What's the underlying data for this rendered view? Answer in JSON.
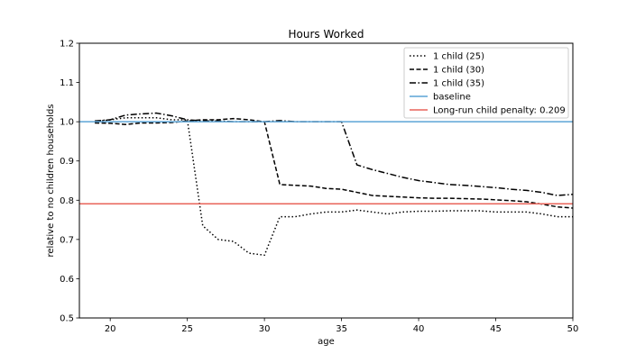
{
  "chart_data": {
    "type": "line",
    "title": "Hours Worked",
    "xlabel": "age",
    "ylabel": "relative to no children households",
    "xlim": [
      18,
      50
    ],
    "ylim": [
      0.5,
      1.2
    ],
    "xticks": [
      20,
      25,
      30,
      35,
      40,
      45,
      50
    ],
    "yticks": [
      0.5,
      0.6,
      0.7,
      0.8,
      0.9,
      1.0,
      1.1,
      1.2
    ],
    "grid": false,
    "legend_position": "top-right",
    "series": [
      {
        "name": "1 child (25)",
        "style": "dotted",
        "color": "#000000",
        "x": [
          19,
          20,
          21,
          22,
          23,
          24,
          25,
          26,
          27,
          28,
          29,
          30,
          31,
          32,
          33,
          34,
          35,
          36,
          37,
          38,
          39,
          40,
          41,
          42,
          43,
          44,
          45,
          46,
          47,
          48,
          49,
          50
        ],
        "y": [
          1.0,
          1.005,
          1.01,
          1.01,
          1.01,
          1.005,
          1.005,
          0.735,
          0.7,
          0.695,
          0.665,
          0.66,
          0.758,
          0.758,
          0.765,
          0.77,
          0.77,
          0.775,
          0.77,
          0.765,
          0.77,
          0.772,
          0.772,
          0.773,
          0.773,
          0.773,
          0.77,
          0.77,
          0.77,
          0.765,
          0.758,
          0.758
        ]
      },
      {
        "name": "1 child (30)",
        "style": "dashed",
        "color": "#000000",
        "x": [
          19,
          20,
          21,
          22,
          23,
          24,
          25,
          26,
          27,
          28,
          29,
          30,
          31,
          32,
          33,
          34,
          35,
          36,
          37,
          38,
          39,
          40,
          41,
          42,
          43,
          44,
          45,
          46,
          47,
          48,
          49,
          50
        ],
        "y": [
          0.997,
          0.996,
          0.993,
          0.997,
          0.997,
          0.998,
          1.002,
          1.005,
          1.005,
          1.008,
          1.005,
          1.0,
          0.84,
          0.838,
          0.836,
          0.83,
          0.828,
          0.82,
          0.812,
          0.81,
          0.808,
          0.806,
          0.805,
          0.805,
          0.804,
          0.803,
          0.801,
          0.799,
          0.796,
          0.79,
          0.783,
          0.78
        ]
      },
      {
        "name": "1 child (35)",
        "style": "dashdot",
        "color": "#000000",
        "x": [
          19,
          20,
          21,
          22,
          23,
          24,
          25,
          26,
          27,
          28,
          29,
          30,
          31,
          32,
          33,
          34,
          35,
          36,
          37,
          38,
          39,
          40,
          41,
          42,
          43,
          44,
          45,
          46,
          47,
          48,
          49,
          50
        ],
        "y": [
          1.002,
          1.005,
          1.017,
          1.02,
          1.022,
          1.015,
          1.005,
          1.002,
          1.002,
          1.0,
          1.0,
          1.0,
          1.003,
          1.0,
          1.0,
          1.0,
          1.0,
          0.89,
          0.878,
          0.868,
          0.858,
          0.85,
          0.845,
          0.84,
          0.838,
          0.835,
          0.832,
          0.828,
          0.825,
          0.82,
          0.812,
          0.815
        ]
      },
      {
        "name": "baseline",
        "style": "hline",
        "color": "#5ca4d6",
        "y": 1.0
      },
      {
        "name": "Long-run child penalty: 0.209",
        "style": "hline",
        "color": "#e8645a",
        "y": 0.791
      }
    ]
  }
}
